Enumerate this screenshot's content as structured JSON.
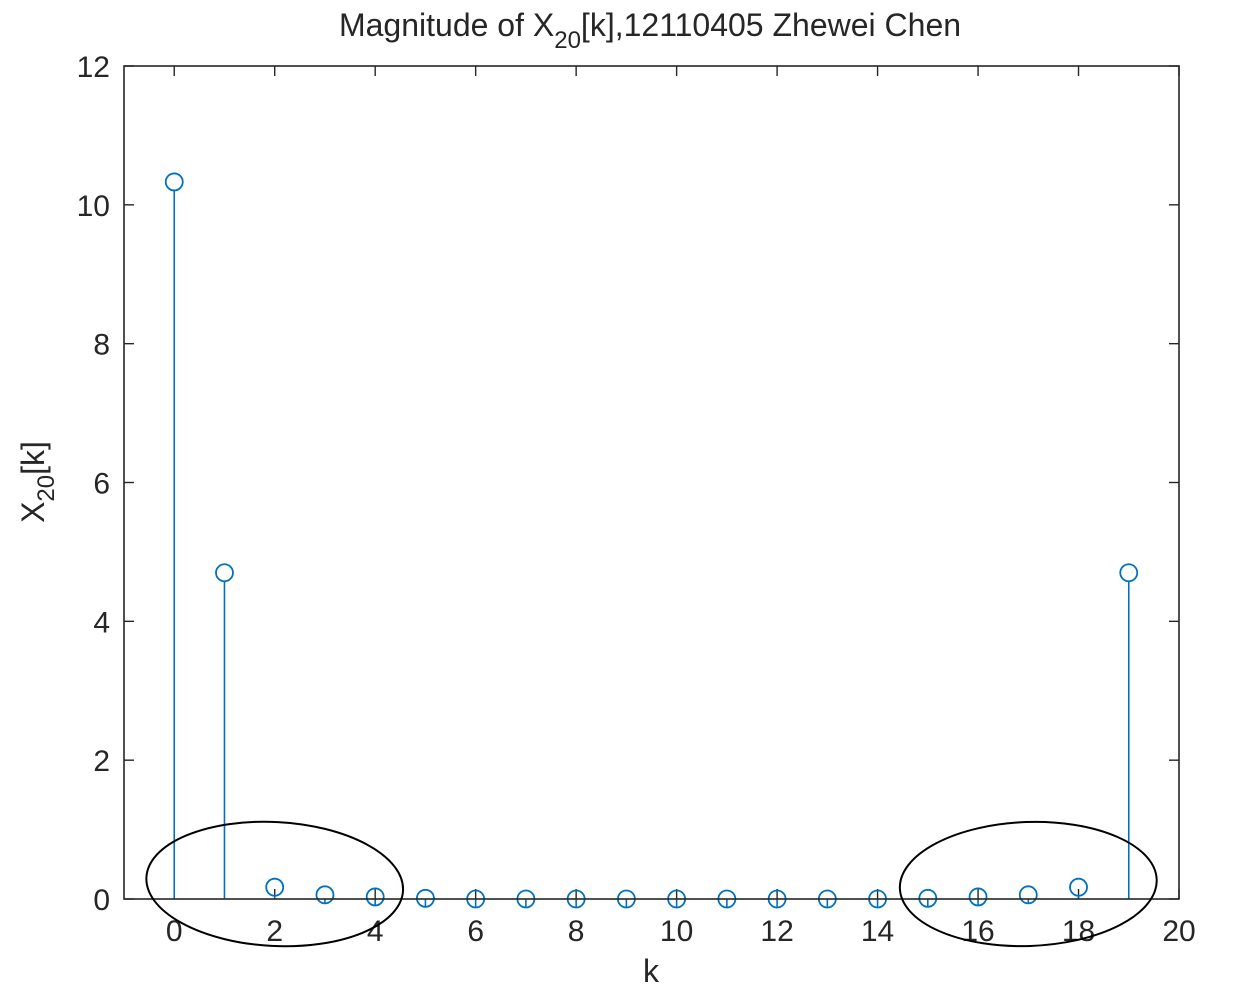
{
  "chart_data": {
    "type": "stem",
    "title": {
      "prefix": "Magnitude of X",
      "subscript": "20",
      "suffix": "[k],12110405 Zhewei Chen"
    },
    "xlabel": "k",
    "ylabel": {
      "base": "X",
      "subscript": "20",
      "suffix": "[k]"
    },
    "xlim": [
      -1,
      20
    ],
    "ylim": [
      0,
      12
    ],
    "xticks": [
      0,
      2,
      4,
      6,
      8,
      10,
      12,
      14,
      16,
      18,
      20
    ],
    "yticks": [
      0,
      2,
      4,
      6,
      8,
      10,
      12
    ],
    "x": [
      0,
      1,
      2,
      3,
      4,
      5,
      6,
      7,
      8,
      9,
      10,
      11,
      12,
      13,
      14,
      15,
      16,
      17,
      18,
      19
    ],
    "values": [
      10.33,
      4.7,
      0.17,
      0.06,
      0.03,
      0.01,
      0.0,
      0.0,
      0.0,
      0.0,
      0.0,
      0.0,
      0.0,
      0.0,
      0.0,
      0.01,
      0.03,
      0.06,
      0.17,
      4.7
    ],
    "marker": "circle",
    "grid": false,
    "colors": {
      "stem": "#0072BD",
      "axes": "#262626",
      "annotation": "#000000"
    },
    "annotations": [
      {
        "shape": "ellipse",
        "around_k": [
          0,
          4
        ]
      },
      {
        "shape": "ellipse",
        "around_k": [
          15,
          19
        ]
      }
    ]
  }
}
